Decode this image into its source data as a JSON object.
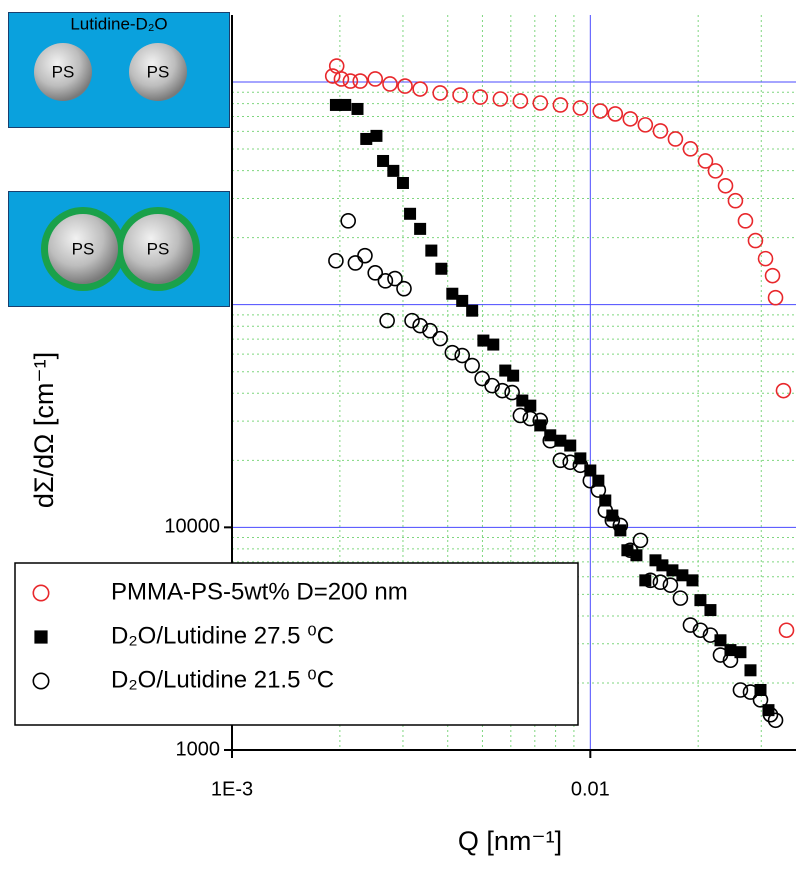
{
  "chart_data": {
    "type": "scatter",
    "xlabel": "Q [nm⁻¹]",
    "ylabel": "dΣ/dΩ [cm⁻¹]",
    "log_x": true,
    "log_y": true,
    "grid": true,
    "legend": "lower left",
    "xlim": [
      0.001,
      0.0375
    ],
    "ylim": [
      1000,
      2000000
    ],
    "xticks": [
      {
        "value": 0.001,
        "label": "1E-3"
      },
      0.01
    ],
    "yticks": [
      1000,
      10000
    ],
    "series": [
      {
        "name": "PMMA-PS-5wt% D=200 nm",
        "color": "#e8282c",
        "marker": "circle-open",
        "x": [
          0.00191,
          0.00196,
          0.00202,
          0.00214,
          0.00228,
          0.00251,
          0.00276,
          0.00304,
          0.00335,
          0.00381,
          0.00433,
          0.00493,
          0.00561,
          0.00638,
          0.00725,
          0.00825,
          0.00938,
          0.01066,
          0.01174,
          0.01293,
          0.01424,
          0.01569,
          0.01728,
          0.01903,
          0.02096,
          0.02235,
          0.02384,
          0.02541,
          0.0271,
          0.0289,
          0.03083,
          0.03225,
          0.03288,
          0.0346,
          0.03528
        ],
        "values": [
          1064000,
          1180000,
          1032000,
          1010000,
          1010000,
          1032000,
          980000,
          959000,
          930000,
          893000,
          874000,
          856000,
          839000,
          822000,
          805000,
          789000,
          765000,
          741000,
          719000,
          683000,
          642000,
          603000,
          555000,
          501000,
          442000,
          399000,
          342000,
          293000,
          238000,
          194000,
          161000,
          135000,
          107500,
          41100,
          3450
        ]
      },
      {
        "name": "D₂O/Lutidine 27.5 ⁰C",
        "color": "#000000",
        "marker": "square",
        "x": [
          0.00195,
          0.00207,
          0.00224,
          0.00237,
          0.00253,
          0.00264,
          0.00282,
          0.003,
          0.00314,
          0.00335,
          0.0036,
          0.00384,
          0.00412,
          0.00439,
          0.00468,
          0.00503,
          0.00536,
          0.00579,
          0.00609,
          0.00646,
          0.0068,
          0.00725,
          0.00773,
          0.00825,
          0.00879,
          0.00938,
          0.01,
          0.01053,
          0.01101,
          0.01152,
          0.01213,
          0.01269,
          0.01345,
          0.01424,
          0.0152,
          0.01589,
          0.01695,
          0.01807,
          0.01928,
          0.02029,
          0.02164,
          0.02308,
          0.02461,
          0.02624,
          0.02799,
          0.02985,
          0.03142
        ],
        "values": [
          789000,
          789000,
          757000,
          555000,
          573000,
          442000,
          399000,
          352000,
          256000,
          219000,
          175000,
          145000,
          112000,
          104000,
          94000,
          69000,
          66200,
          50600,
          48000,
          37100,
          35200,
          28700,
          25900,
          24500,
          23300,
          20400,
          18000,
          16200,
          13200,
          11300,
          9690,
          7890,
          7490,
          5780,
          7110,
          6750,
          6410,
          6090,
          5780,
          4710,
          4250,
          3110,
          2810,
          2750,
          2280,
          1860,
          1510
        ]
      },
      {
        "name": "D₂O/Lutidine 21.5 ⁰C",
        "color": "#000000",
        "marker": "circle-open",
        "x": [
          0.00195,
          0.00211,
          0.00221,
          0.00235,
          0.00251,
          0.00268,
          0.00285,
          0.00302,
          0.00271,
          0.00318,
          0.00335,
          0.00357,
          0.00381,
          0.00412,
          0.00439,
          0.00468,
          0.00499,
          0.00532,
          0.00568,
          0.00605,
          0.00638,
          0.0068,
          0.00725,
          0.00773,
          0.00825,
          0.00879,
          0.00938,
          0.01,
          0.01053,
          0.01101,
          0.01152,
          0.01213,
          0.01293,
          0.0138,
          0.01471,
          0.01569,
          0.01673,
          0.01784,
          0.01903,
          0.02029,
          0.02164,
          0.02308,
          0.02461,
          0.02624,
          0.02799,
          0.02985,
          0.03183,
          0.03288
        ],
        "values": [
          157500,
          238000,
          154000,
          166000,
          139000,
          128000,
          131000,
          118000,
          84800,
          84800,
          80500,
          76400,
          70400,
          60900,
          59100,
          53300,
          46600,
          43300,
          41100,
          40300,
          31800,
          30800,
          30200,
          24500,
          20000,
          19600,
          19000,
          16200,
          14700,
          11900,
          10750,
          10200,
          7890,
          8740,
          5780,
          5670,
          5500,
          4810,
          3640,
          3450,
          3280,
          2670,
          2530,
          1860,
          1820,
          1680,
          1440,
          1360
        ]
      }
    ]
  },
  "insets": [
    {
      "label": "Lutidine-D₂O",
      "particles": [
        "PS",
        "PS"
      ]
    },
    {
      "particles": [
        "PS",
        "PS"
      ]
    }
  ]
}
